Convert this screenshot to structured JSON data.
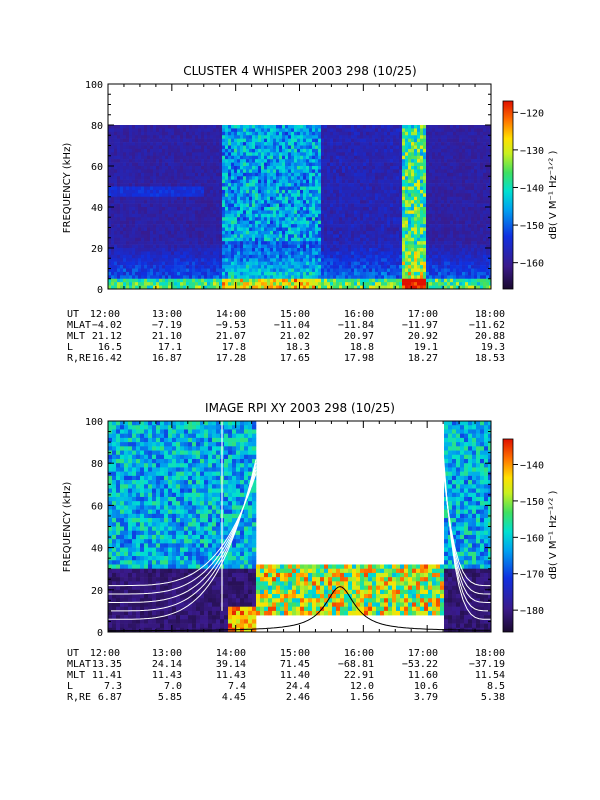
{
  "chart_data": [
    {
      "type": "heatmap",
      "title": "CLUSTER 4 WHISPER 2003 298 (10/25)",
      "ylabel": "FREQUENCY (kHz)",
      "ylim": [
        0,
        100
      ],
      "yticks": [
        "0",
        "20",
        "40",
        "60",
        "80",
        "100"
      ],
      "xlim": [
        "12:00",
        "18:00"
      ],
      "data_top_khz": 80,
      "colorbar": {
        "label": "dB( V M⁻¹ Hz⁻¹ᐟ² )",
        "range": [
          -167,
          -117
        ],
        "ticks": [
          "-120",
          "-130",
          "-140",
          "-150",
          "-160"
        ]
      },
      "orbit": {
        "labels": [
          "UT",
          "MLAT",
          "MLT",
          "L",
          "R,RE"
        ],
        "rows": [
          [
            "12:00",
            "13:00",
            "14:00",
            "15:00",
            "16:00",
            "17:00",
            "18:00"
          ],
          [
            "−4.02",
            "−7.19",
            "−9.53",
            "−11.04",
            "−11.84",
            "−11.97",
            "−11.62"
          ],
          [
            "21.12",
            "21.10",
            "21.07",
            "21.02",
            "20.97",
            "20.92",
            "20.88"
          ],
          [
            "16.5",
            "17.1",
            "17.8",
            "18.3",
            "18.8",
            "19.1",
            "19.3"
          ],
          [
            "16.42",
            "16.87",
            "17.28",
            "17.65",
            "17.98",
            "18.27",
            "18.53"
          ]
        ]
      }
    },
    {
      "type": "heatmap",
      "title": "IMAGE RPI XY 2003 298 (10/25)",
      "ylabel": "FREQUENCY (kHz)",
      "ylim": [
        0,
        100
      ],
      "yticks": [
        "0",
        "20",
        "40",
        "60",
        "80",
        "100"
      ],
      "xlim": [
        "12:00",
        "18:00"
      ],
      "colorbar": {
        "label": "dB( V M⁻¹ Hz⁻¹ᐟ² )",
        "range": [
          -186,
          -133
        ],
        "ticks": [
          "-140",
          "-150",
          "-160",
          "-170",
          "-180"
        ]
      },
      "orbit": {
        "labels": [
          "UT",
          "MLAT",
          "MLT",
          "L",
          "R,RE"
        ],
        "rows": [
          [
            "12:00",
            "13:00",
            "14:00",
            "15:00",
            "16:00",
            "17:00",
            "18:00"
          ],
          [
            "13.35",
            "24.14",
            "39.14",
            "71.45",
            "−68.81",
            "−53.22",
            "−37.19"
          ],
          [
            "11.41",
            "11.43",
            "11.43",
            "11.40",
            "22.91",
            "11.60",
            "11.54"
          ],
          [
            "7.3",
            "7.0",
            "7.4",
            "24.4",
            "12.0",
            "10.6",
            "8.5"
          ],
          [
            "6.87",
            "5.85",
            "4.45",
            "2.46",
            "1.56",
            "3.79",
            "5.38"
          ]
        ]
      }
    }
  ]
}
